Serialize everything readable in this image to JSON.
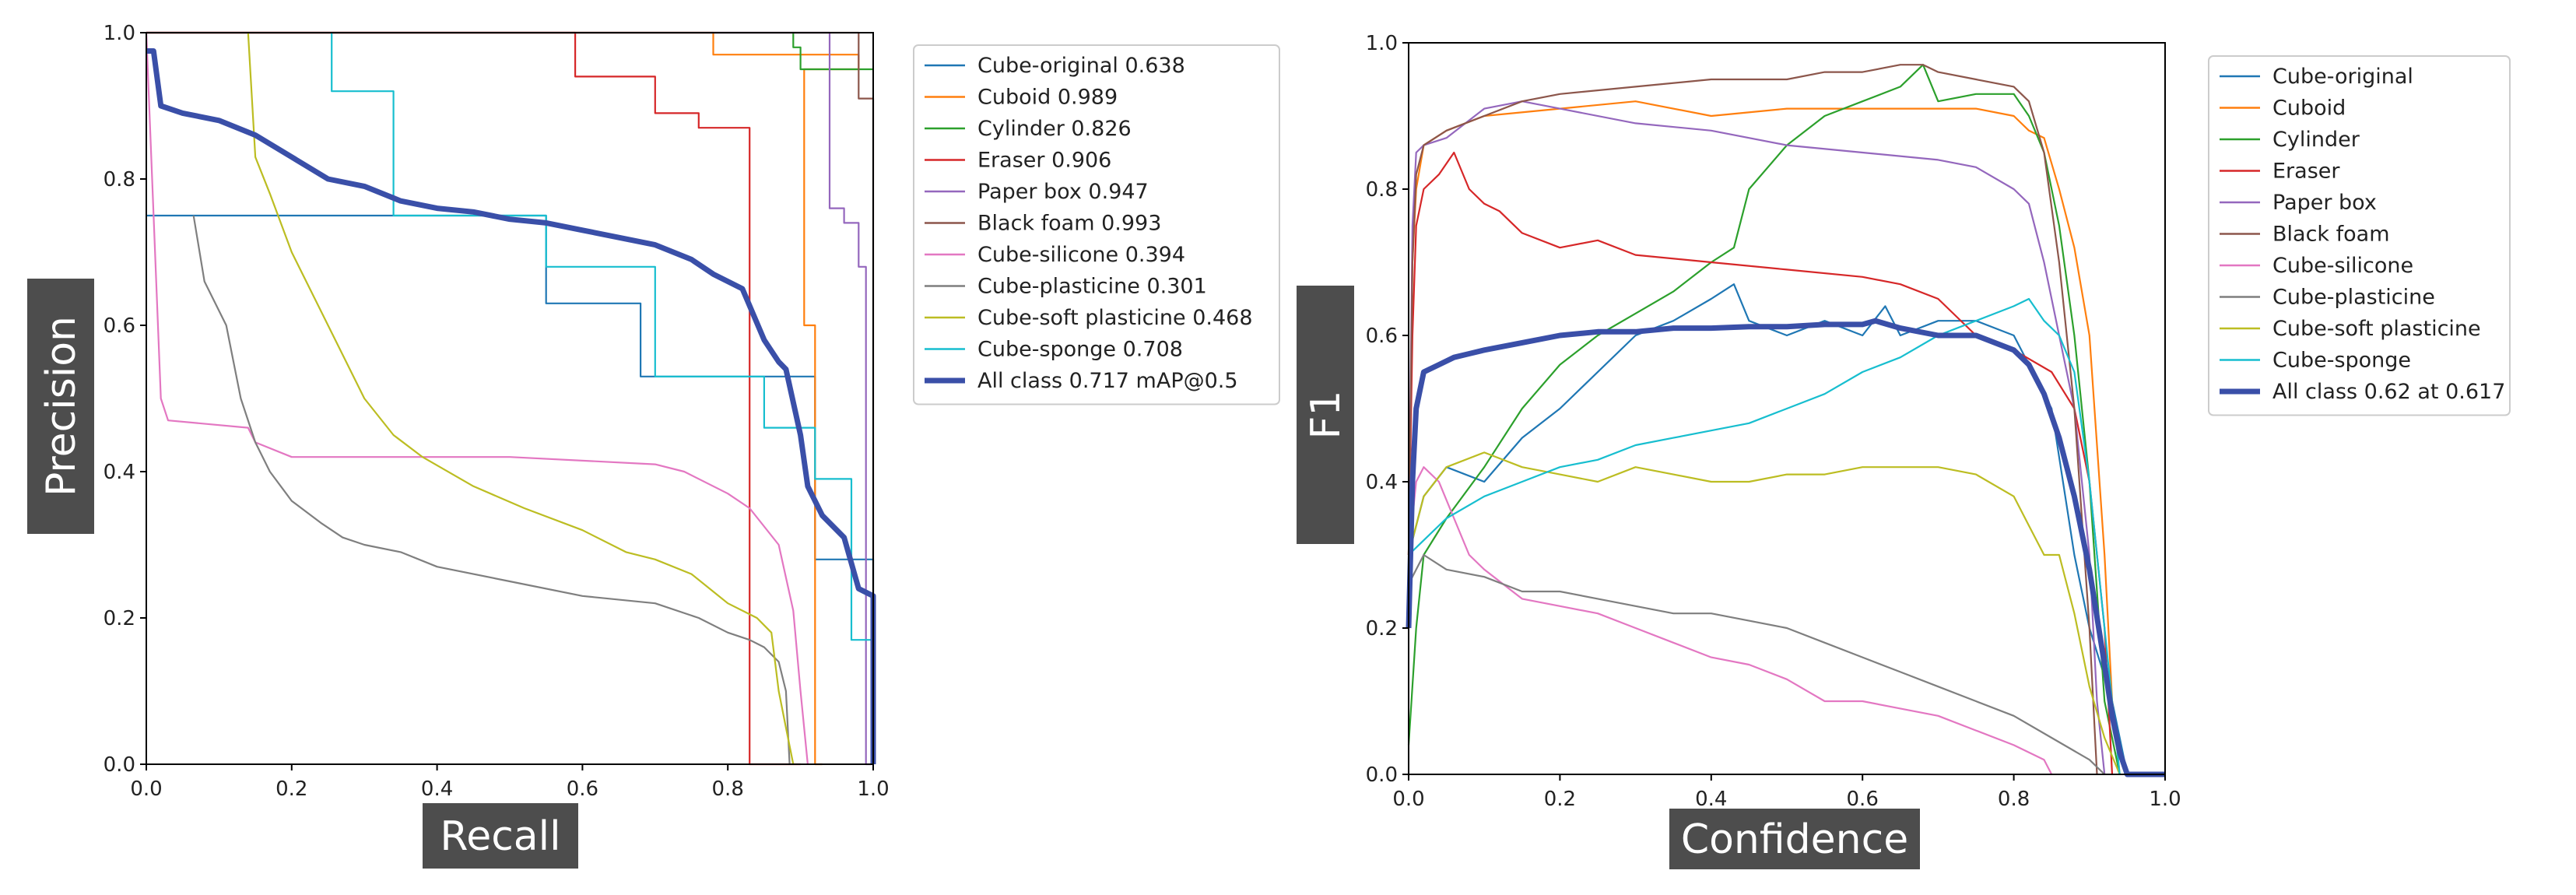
{
  "colors": {
    "Cube-original": "#1f77b4",
    "Cuboid": "#ff7f0e",
    "Cylinder": "#2ca02c",
    "Eraser": "#d62728",
    "Paper box": "#9467bd",
    "Black foam": "#8c564b",
    "Cube-silicone": "#e377c2",
    "Cube-plasticine": "#7f7f7f",
    "Cube-soft plasticine": "#bcbd22",
    "Cube-sponge": "#17becf",
    "All class": "#3a4fa8",
    "label_box": "#4d4d4d"
  },
  "chart_data": [
    {
      "type": "line",
      "xlabel": "Recall",
      "ylabel": "Precision",
      "xlim": [
        0,
        1
      ],
      "ylim": [
        0,
        1
      ],
      "xticks": [
        "0.0",
        "0.2",
        "0.4",
        "0.6",
        "0.8",
        "1.0"
      ],
      "yticks": [
        "0.0",
        "0.2",
        "0.4",
        "0.6",
        "0.8",
        "1.0"
      ],
      "legend_position": "right-outside",
      "series": [
        {
          "name": "Cube-original",
          "legend": "Cube-original 0.638",
          "x": [
            0,
            0.55,
            0.55,
            0.68,
            0.68,
            0.92,
            0.92,
            1.0,
            1.0
          ],
          "y": [
            0.75,
            0.75,
            0.63,
            0.63,
            0.53,
            0.53,
            0.28,
            0.28,
            0.0
          ]
        },
        {
          "name": "Cuboid",
          "legend": "Cuboid 0.989",
          "x": [
            0,
            0.78,
            0.78,
            0.98,
            0.98,
            0.905,
            0.905,
            0.92,
            0.92,
            0.93
          ],
          "y": [
            1.0,
            1.0,
            0.97,
            0.97,
            0.95,
            0.95,
            0.6,
            0.6,
            0.0,
            0.0
          ]
        },
        {
          "name": "Cylinder",
          "legend": "Cylinder 0.826",
          "x": [
            0.89,
            0.89,
            0.9,
            0.9,
            1.0
          ],
          "y": [
            1.0,
            0.98,
            0.98,
            0.95,
            0.95
          ]
        },
        {
          "name": "Eraser",
          "legend": "Eraser 0.906",
          "x": [
            0,
            0.59,
            0.59,
            0.7,
            0.7,
            0.76,
            0.76,
            0.83,
            0.83,
            0.88,
            0.88,
            0.9
          ],
          "y": [
            1.0,
            1.0,
            0.94,
            0.94,
            0.89,
            0.89,
            0.87,
            0.87,
            0.0,
            0.0,
            0.0,
            0.0
          ]
        },
        {
          "name": "Paper box",
          "legend": "Paper box 0.947",
          "x": [
            0,
            0.94,
            0.94,
            0.96,
            0.96,
            0.98,
            0.98,
            0.99,
            0.99,
            1.0
          ],
          "y": [
            1.0,
            1.0,
            0.76,
            0.76,
            0.74,
            0.74,
            0.68,
            0.68,
            0.0,
            0.0
          ]
        },
        {
          "name": "Black foam",
          "legend": "Black foam 0.993",
          "x": [
            0,
            0.98,
            0.98,
            1.0,
            1.0
          ],
          "y": [
            1.0,
            1.0,
            0.91,
            0.91,
            0.0
          ]
        },
        {
          "name": "Cube-silicone",
          "legend": "Cube-silicone 0.394",
          "x": [
            0,
            0.02,
            0.03,
            0.14,
            0.15,
            0.2,
            0.3,
            0.5,
            0.7,
            0.74,
            0.8,
            0.83,
            0.87,
            0.89,
            0.9,
            0.91
          ],
          "y": [
            1.0,
            0.5,
            0.47,
            0.46,
            0.44,
            0.42,
            0.42,
            0.42,
            0.41,
            0.4,
            0.37,
            0.35,
            0.3,
            0.21,
            0.1,
            0.0
          ]
        },
        {
          "name": "Cube-plasticine",
          "legend": "Cube-plasticine 0.301",
          "x": [
            0.065,
            0.08,
            0.11,
            0.13,
            0.15,
            0.17,
            0.2,
            0.24,
            0.27,
            0.3,
            0.35,
            0.4,
            0.5,
            0.6,
            0.7,
            0.76,
            0.8,
            0.83,
            0.85,
            0.87,
            0.88,
            0.885
          ],
          "y": [
            0.75,
            0.66,
            0.6,
            0.5,
            0.44,
            0.4,
            0.36,
            0.33,
            0.31,
            0.3,
            0.29,
            0.27,
            0.25,
            0.23,
            0.22,
            0.2,
            0.18,
            0.17,
            0.16,
            0.14,
            0.1,
            0.0
          ]
        },
        {
          "name": "Cube-soft plasticine",
          "legend": "Cube-soft plasticine 0.468",
          "x": [
            0.14,
            0.15,
            0.17,
            0.2,
            0.25,
            0.3,
            0.34,
            0.38,
            0.45,
            0.52,
            0.6,
            0.66,
            0.7,
            0.75,
            0.8,
            0.84,
            0.86,
            0.87,
            0.88,
            0.89
          ],
          "y": [
            1.0,
            0.83,
            0.78,
            0.7,
            0.6,
            0.5,
            0.45,
            0.42,
            0.38,
            0.35,
            0.32,
            0.29,
            0.28,
            0.26,
            0.22,
            0.2,
            0.18,
            0.1,
            0.05,
            0.0
          ]
        },
        {
          "name": "Cube-sponge",
          "legend": "Cube-sponge 0.708",
          "x": [
            0.255,
            0.255,
            0.34,
            0.34,
            0.55,
            0.55,
            0.7,
            0.7,
            0.85,
            0.85,
            0.92,
            0.92,
            0.97,
            0.97,
            1.0
          ],
          "y": [
            1.0,
            0.92,
            0.92,
            0.75,
            0.75,
            0.68,
            0.68,
            0.53,
            0.53,
            0.46,
            0.46,
            0.39,
            0.39,
            0.17,
            0.17
          ]
        },
        {
          "name": "All class",
          "legend": "All class 0.717 mAP@0.5",
          "thick": true,
          "x": [
            0,
            0.01,
            0.02,
            0.05,
            0.1,
            0.15,
            0.2,
            0.25,
            0.3,
            0.35,
            0.4,
            0.45,
            0.5,
            0.55,
            0.6,
            0.65,
            0.7,
            0.75,
            0.78,
            0.82,
            0.85,
            0.87,
            0.88,
            0.9,
            0.91,
            0.93,
            0.96,
            0.98,
            1.0,
            1.0
          ],
          "y": [
            0.975,
            0.975,
            0.9,
            0.89,
            0.88,
            0.86,
            0.83,
            0.8,
            0.79,
            0.77,
            0.76,
            0.755,
            0.745,
            0.74,
            0.73,
            0.72,
            0.71,
            0.69,
            0.67,
            0.65,
            0.58,
            0.55,
            0.54,
            0.45,
            0.38,
            0.34,
            0.31,
            0.24,
            0.23,
            0.0
          ]
        }
      ]
    },
    {
      "type": "line",
      "xlabel": "Confidence",
      "ylabel": "F1",
      "xlim": [
        0,
        1
      ],
      "ylim": [
        0,
        1
      ],
      "xticks": [
        "0.0",
        "0.2",
        "0.4",
        "0.6",
        "0.8",
        "1.0"
      ],
      "yticks": [
        "0.0",
        "0.2",
        "0.4",
        "0.6",
        "0.8",
        "1.0"
      ],
      "legend_position": "right-outside",
      "series": [
        {
          "name": "Cube-original",
          "legend": "Cube-original",
          "x": [
            0,
            0.02,
            0.05,
            0.1,
            0.15,
            0.2,
            0.3,
            0.35,
            0.4,
            0.43,
            0.45,
            0.5,
            0.55,
            0.6,
            0.63,
            0.65,
            0.7,
            0.75,
            0.8,
            0.85,
            0.88,
            0.9,
            0.93,
            0.95
          ],
          "y": [
            0.3,
            0.38,
            0.42,
            0.4,
            0.46,
            0.5,
            0.6,
            0.62,
            0.65,
            0.67,
            0.62,
            0.6,
            0.62,
            0.6,
            0.64,
            0.6,
            0.62,
            0.62,
            0.6,
            0.5,
            0.3,
            0.2,
            0.1,
            0.0
          ]
        },
        {
          "name": "Cuboid",
          "legend": "Cuboid",
          "x": [
            0,
            0.005,
            0.01,
            0.02,
            0.05,
            0.1,
            0.2,
            0.3,
            0.4,
            0.5,
            0.6,
            0.65,
            0.7,
            0.75,
            0.8,
            0.82,
            0.84,
            0.86,
            0.88,
            0.9,
            0.92,
            0.93,
            0.94
          ],
          "y": [
            0.3,
            0.7,
            0.8,
            0.86,
            0.88,
            0.9,
            0.91,
            0.92,
            0.9,
            0.91,
            0.91,
            0.91,
            0.91,
            0.91,
            0.9,
            0.88,
            0.87,
            0.8,
            0.72,
            0.6,
            0.3,
            0.1,
            0.0
          ]
        },
        {
          "name": "Cylinder",
          "legend": "Cylinder",
          "x": [
            0,
            0.01,
            0.02,
            0.05,
            0.1,
            0.15,
            0.2,
            0.25,
            0.3,
            0.35,
            0.4,
            0.43,
            0.45,
            0.5,
            0.55,
            0.6,
            0.65,
            0.68,
            0.7,
            0.75,
            0.8,
            0.82,
            0.84,
            0.86,
            0.88,
            0.9,
            0.92,
            0.94
          ],
          "y": [
            0.04,
            0.2,
            0.3,
            0.35,
            0.42,
            0.5,
            0.56,
            0.6,
            0.63,
            0.66,
            0.7,
            0.72,
            0.8,
            0.86,
            0.9,
            0.92,
            0.94,
            0.97,
            0.92,
            0.93,
            0.93,
            0.9,
            0.85,
            0.75,
            0.6,
            0.4,
            0.1,
            0.0
          ]
        },
        {
          "name": "Eraser",
          "legend": "Eraser",
          "x": [
            0,
            0.005,
            0.01,
            0.02,
            0.04,
            0.06,
            0.08,
            0.1,
            0.12,
            0.15,
            0.2,
            0.25,
            0.3,
            0.4,
            0.5,
            0.6,
            0.65,
            0.7,
            0.75,
            0.8,
            0.85,
            0.88,
            0.9,
            0.92,
            0.93
          ],
          "y": [
            0.3,
            0.6,
            0.75,
            0.8,
            0.82,
            0.85,
            0.8,
            0.78,
            0.77,
            0.74,
            0.72,
            0.73,
            0.71,
            0.7,
            0.69,
            0.68,
            0.67,
            0.65,
            0.6,
            0.58,
            0.55,
            0.5,
            0.4,
            0.2,
            0.0
          ]
        },
        {
          "name": "Paper box",
          "legend": "Paper box",
          "x": [
            0,
            0.005,
            0.01,
            0.02,
            0.05,
            0.1,
            0.15,
            0.2,
            0.3,
            0.4,
            0.5,
            0.6,
            0.7,
            0.75,
            0.8,
            0.82,
            0.84,
            0.86,
            0.88,
            0.9,
            0.91,
            0.92
          ],
          "y": [
            0.3,
            0.75,
            0.85,
            0.86,
            0.87,
            0.91,
            0.92,
            0.91,
            0.89,
            0.88,
            0.86,
            0.85,
            0.84,
            0.83,
            0.8,
            0.78,
            0.7,
            0.6,
            0.5,
            0.3,
            0.1,
            0.0
          ]
        },
        {
          "name": "Black foam",
          "legend": "Black foam",
          "x": [
            0,
            0.005,
            0.01,
            0.02,
            0.05,
            0.1,
            0.15,
            0.2,
            0.3,
            0.4,
            0.5,
            0.55,
            0.6,
            0.65,
            0.68,
            0.7,
            0.75,
            0.8,
            0.82,
            0.84,
            0.86,
            0.88,
            0.9,
            0.91
          ],
          "y": [
            0.3,
            0.7,
            0.82,
            0.86,
            0.88,
            0.9,
            0.92,
            0.93,
            0.94,
            0.95,
            0.95,
            0.96,
            0.96,
            0.97,
            0.97,
            0.96,
            0.95,
            0.94,
            0.92,
            0.85,
            0.7,
            0.5,
            0.2,
            0.0
          ]
        },
        {
          "name": "Cube-silicone",
          "legend": "Cube-silicone",
          "x": [
            0,
            0.01,
            0.02,
            0.04,
            0.06,
            0.08,
            0.1,
            0.15,
            0.2,
            0.25,
            0.3,
            0.35,
            0.4,
            0.45,
            0.5,
            0.55,
            0.6,
            0.65,
            0.7,
            0.75,
            0.8,
            0.84,
            0.85
          ],
          "y": [
            0.3,
            0.4,
            0.42,
            0.4,
            0.35,
            0.3,
            0.28,
            0.24,
            0.23,
            0.22,
            0.2,
            0.18,
            0.16,
            0.15,
            0.13,
            0.1,
            0.1,
            0.09,
            0.08,
            0.06,
            0.04,
            0.02,
            0.0
          ]
        },
        {
          "name": "Cube-plasticine",
          "legend": "Cube-plasticine",
          "x": [
            0,
            0.02,
            0.05,
            0.1,
            0.15,
            0.2,
            0.25,
            0.3,
            0.35,
            0.4,
            0.45,
            0.5,
            0.55,
            0.6,
            0.65,
            0.7,
            0.75,
            0.8,
            0.85,
            0.9,
            0.92
          ],
          "y": [
            0.26,
            0.3,
            0.28,
            0.27,
            0.25,
            0.25,
            0.24,
            0.23,
            0.22,
            0.22,
            0.21,
            0.2,
            0.18,
            0.16,
            0.14,
            0.12,
            0.1,
            0.08,
            0.05,
            0.02,
            0.0
          ]
        },
        {
          "name": "Cube-soft plasticine",
          "legend": "Cube-soft plasticine",
          "x": [
            0,
            0.02,
            0.05,
            0.1,
            0.15,
            0.2,
            0.25,
            0.3,
            0.35,
            0.4,
            0.45,
            0.5,
            0.55,
            0.6,
            0.65,
            0.7,
            0.75,
            0.8,
            0.82,
            0.84,
            0.86,
            0.88,
            0.9,
            0.92,
            0.94
          ],
          "y": [
            0.3,
            0.38,
            0.42,
            0.44,
            0.42,
            0.41,
            0.4,
            0.42,
            0.41,
            0.4,
            0.4,
            0.41,
            0.41,
            0.42,
            0.42,
            0.42,
            0.41,
            0.38,
            0.34,
            0.3,
            0.3,
            0.22,
            0.12,
            0.05,
            0.0
          ]
        },
        {
          "name": "Cube-sponge",
          "legend": "Cube-sponge",
          "x": [
            0,
            0.02,
            0.05,
            0.1,
            0.15,
            0.2,
            0.25,
            0.3,
            0.35,
            0.4,
            0.45,
            0.5,
            0.55,
            0.6,
            0.65,
            0.7,
            0.75,
            0.8,
            0.82,
            0.84,
            0.86,
            0.88,
            0.9,
            0.92,
            0.94
          ],
          "y": [
            0.3,
            0.32,
            0.35,
            0.38,
            0.4,
            0.42,
            0.43,
            0.45,
            0.46,
            0.47,
            0.48,
            0.5,
            0.52,
            0.55,
            0.57,
            0.6,
            0.62,
            0.64,
            0.65,
            0.62,
            0.6,
            0.55,
            0.4,
            0.2,
            0.0
          ]
        },
        {
          "name": "All class",
          "legend": "All class 0.62 at 0.617",
          "thick": true,
          "x": [
            0,
            0.005,
            0.01,
            0.02,
            0.04,
            0.06,
            0.08,
            0.1,
            0.15,
            0.2,
            0.25,
            0.3,
            0.35,
            0.4,
            0.45,
            0.5,
            0.55,
            0.6,
            0.617,
            0.65,
            0.7,
            0.75,
            0.8,
            0.82,
            0.84,
            0.86,
            0.88,
            0.9,
            0.92,
            0.93,
            0.94,
            0.95,
            1.0
          ],
          "y": [
            0.2,
            0.4,
            0.5,
            0.55,
            0.56,
            0.57,
            0.575,
            0.58,
            0.59,
            0.6,
            0.605,
            0.605,
            0.61,
            0.61,
            0.612,
            0.612,
            0.615,
            0.615,
            0.62,
            0.61,
            0.6,
            0.6,
            0.58,
            0.56,
            0.52,
            0.46,
            0.38,
            0.28,
            0.15,
            0.08,
            0.03,
            0.0,
            0.0
          ]
        }
      ]
    }
  ]
}
